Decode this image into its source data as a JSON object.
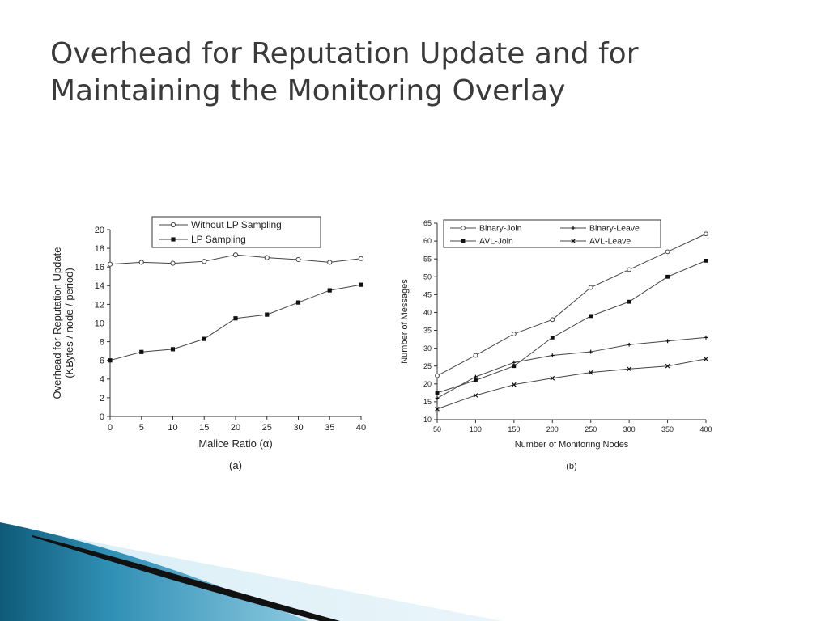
{
  "slide": {
    "title_line1": "Overhead for Reputation Update and for",
    "title_line2": "Maintaining the Monitoring Overlay"
  },
  "chart_data": [
    {
      "type": "line",
      "caption": "(a)",
      "xlabel": "Malice Ratio (α)",
      "ylabel_line1": "Overhead for Reputation Update",
      "ylabel_line2": "(KBytes / node / period)",
      "x": [
        0,
        5,
        10,
        15,
        20,
        25,
        30,
        35,
        40
      ],
      "xlim": [
        0,
        40
      ],
      "ylim": [
        0,
        20
      ],
      "xticks": [
        0,
        5,
        10,
        15,
        20,
        25,
        30,
        35,
        40
      ],
      "yticks": [
        0,
        2,
        4,
        6,
        8,
        10,
        12,
        14,
        16,
        18,
        20
      ],
      "legend_position": "top",
      "series": [
        {
          "name": "Without LP Sampling",
          "marker": "circle",
          "values": [
            16.3,
            16.5,
            16.4,
            16.6,
            17.3,
            17.0,
            16.8,
            16.5,
            16.9
          ]
        },
        {
          "name": "LP Sampling",
          "marker": "square",
          "values": [
            6.0,
            6.9,
            7.2,
            8.3,
            10.5,
            10.9,
            12.2,
            13.5,
            14.1
          ]
        }
      ]
    },
    {
      "type": "line",
      "caption": "(b)",
      "xlabel": "Number of Monitoring Nodes",
      "ylabel": "Number of Messages",
      "x": [
        50,
        100,
        150,
        200,
        250,
        300,
        350,
        400
      ],
      "xlim": [
        50,
        400
      ],
      "ylim": [
        10,
        65
      ],
      "xticks": [
        50,
        100,
        150,
        200,
        250,
        300,
        350,
        400
      ],
      "yticks": [
        10,
        15,
        20,
        25,
        30,
        35,
        40,
        45,
        50,
        55,
        60,
        65
      ],
      "legend_position": "top",
      "series": [
        {
          "name": "Binary-Join",
          "marker": "circle",
          "values": [
            22.3,
            28.0,
            34.0,
            38.0,
            47.0,
            52.0,
            57.0,
            62.0
          ]
        },
        {
          "name": "Binary-Leave",
          "marker": "plus",
          "values": [
            16.0,
            22.0,
            26.0,
            28.0,
            29.0,
            31.0,
            32.0,
            33.0
          ]
        },
        {
          "name": "AVL-Join",
          "marker": "square",
          "values": [
            17.5,
            21.0,
            25.0,
            33.0,
            39.0,
            43.0,
            50.0,
            54.5
          ]
        },
        {
          "name": "AVL-Leave",
          "marker": "x",
          "values": [
            13.0,
            16.8,
            19.8,
            21.6,
            23.2,
            24.2,
            25.0,
            27.0
          ]
        }
      ]
    }
  ],
  "colors": {
    "title": "#3a3a3a",
    "line": "#444444",
    "accent_dark": "#0f5a78",
    "accent_mid": "#2f8fb5",
    "accent_light": "#bfe0ee"
  }
}
